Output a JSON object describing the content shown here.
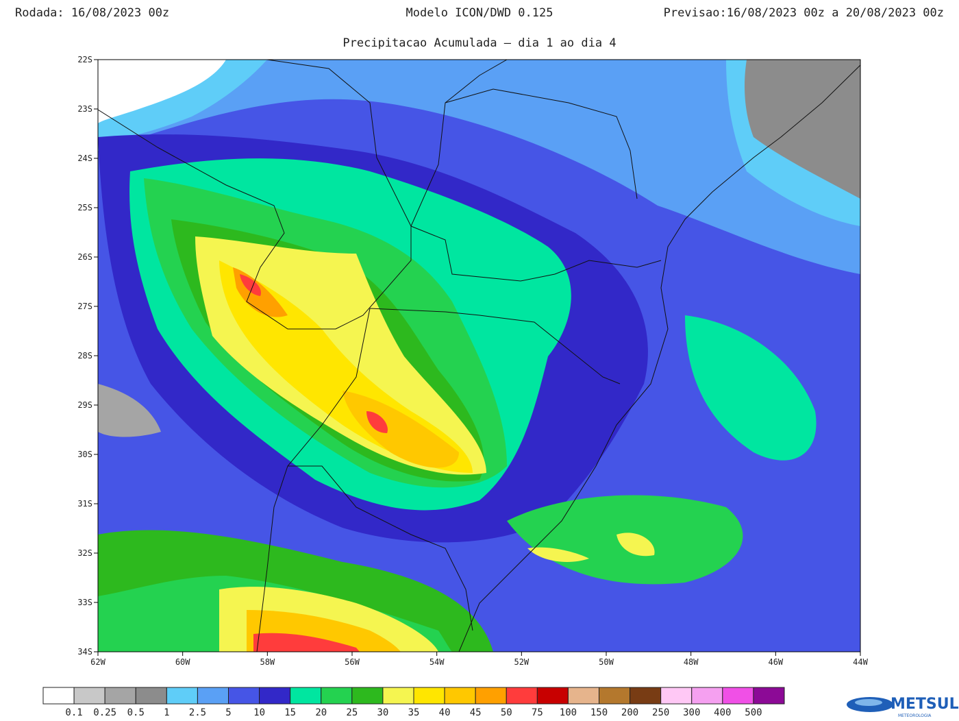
{
  "header": {
    "run": "Rodada: 16/08/2023 00z",
    "model": "Modelo ICON/DWD 0.125",
    "forecast": "Previsao:16/08/2023 00z a 20/08/2023 00z",
    "subtitle": "Precipitacao Acumulada — dia 1 ao dia 4"
  },
  "map": {
    "lat_labels": [
      "22S",
      "23S",
      "24S",
      "25S",
      "26S",
      "27S",
      "28S",
      "29S",
      "30S",
      "31S",
      "32S",
      "33S",
      "34S"
    ],
    "lon_labels": [
      "62W",
      "60W",
      "58W",
      "56W",
      "54W",
      "52W",
      "50W",
      "48W",
      "46W",
      "44W"
    ]
  },
  "legend": {
    "labels": [
      "0.1",
      "0.25",
      "0.5",
      "1",
      "2.5",
      "5",
      "10",
      "15",
      "20",
      "25",
      "30",
      "35",
      "40",
      "45",
      "50",
      "75",
      "100",
      "150",
      "200",
      "250",
      "300",
      "400",
      "500"
    ],
    "colors": [
      "#ffffff",
      "#c8c8c8",
      "#a5a5a5",
      "#8c8c8c",
      "#5fcdf8",
      "#5aa0f5",
      "#4655e6",
      "#3228c8",
      "#00e6a0",
      "#24d250",
      "#2db91e",
      "#f5f550",
      "#ffe600",
      "#ffc800",
      "#ffa000",
      "#ff3c3c",
      "#c80000",
      "#e6b48c",
      "#b4782d",
      "#783c14",
      "#ffc8f5",
      "#f5a0f0",
      "#f050e6",
      "#8c0a96"
    ]
  },
  "logo": {
    "name": "METSUL",
    "tagline": "METEOROLOGIA"
  }
}
